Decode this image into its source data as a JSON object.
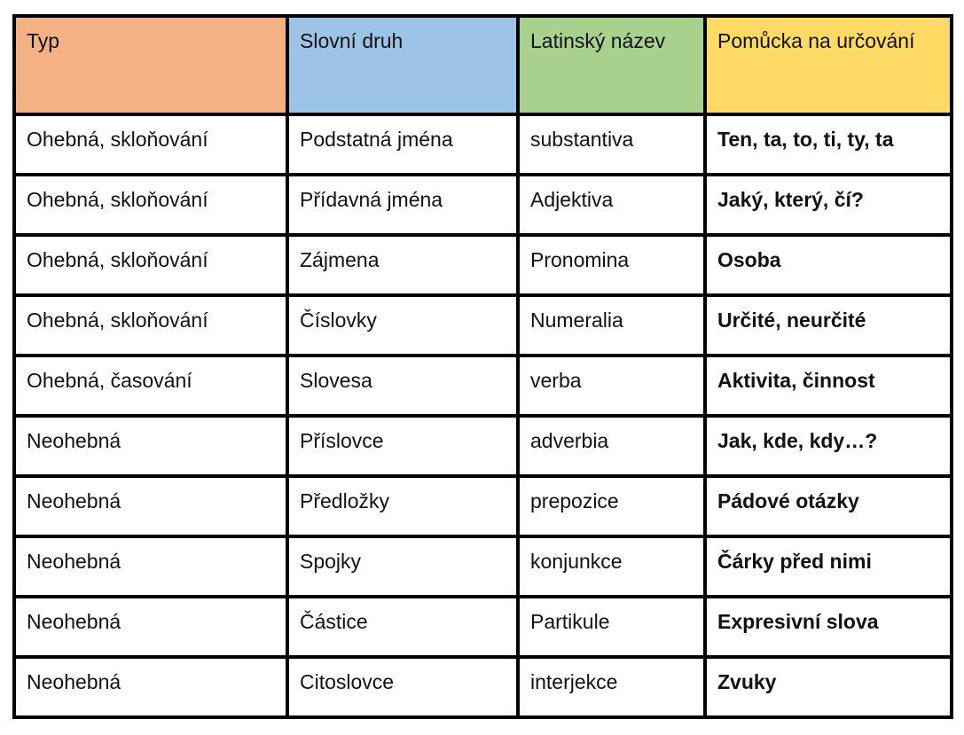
{
  "header": {
    "columns": [
      {
        "label": "Typ",
        "color": "#F4B183"
      },
      {
        "label": "Slovní druh",
        "color": "#9DC3E6"
      },
      {
        "label": "Latinský název",
        "color": "#A9D18E"
      },
      {
        "label": "Pomůcka na určování",
        "color": "#FFD966"
      }
    ]
  },
  "rows": [
    [
      "Ohebná, skloňování",
      "Podstatná jména",
      "substantiva",
      "Ten, ta, to, ti, ty, ta"
    ],
    [
      "Ohebná, skloňování",
      "Přídavná jména",
      "Adjektiva",
      "Jaký, který, čí?"
    ],
    [
      "Ohebná, skloňování",
      "Zájmena",
      "Pronomina",
      "Osoba"
    ],
    [
      "Ohebná, skloňování",
      "Číslovky",
      "Numeralia",
      "Určité, neurčité"
    ],
    [
      "Ohebná, časování",
      "Slovesa",
      "verba",
      "Aktivita, činnost"
    ],
    [
      "Neohebná",
      "Příslovce",
      "adverbia",
      "Jak, kde, kdy…?"
    ],
    [
      "Neohebná",
      "Předložky",
      "prepozice",
      "Pádové otázky"
    ],
    [
      "Neohebná",
      "Spojky",
      "konjunkce",
      "Čárky před nimi"
    ],
    [
      "Neohebná",
      "Částice",
      "Partikule",
      "Expresivní slova"
    ],
    [
      "Neohebná",
      "Citoslovce",
      "interjekce",
      "Zvuky"
    ]
  ]
}
